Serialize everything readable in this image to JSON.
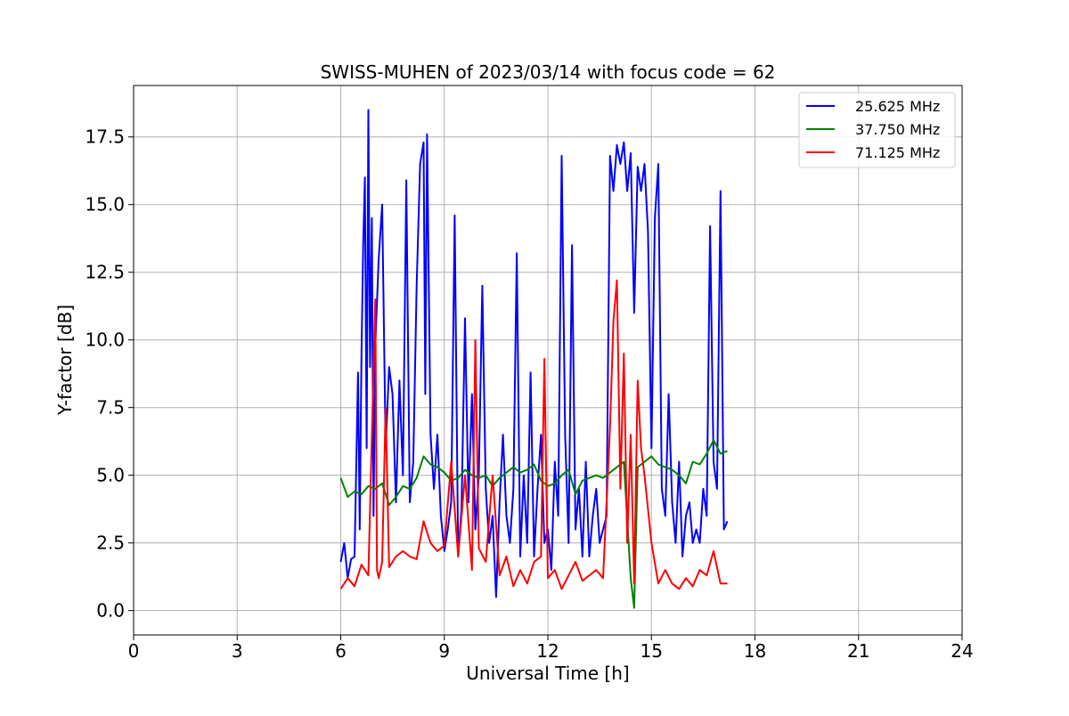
{
  "chart_data": {
    "type": "line",
    "title": "SWISS-MUHEN of 2023/03/14 with focus code = 62",
    "xlabel": "Universal Time [h]",
    "ylabel": "Y-factor [dB]",
    "xlim": [
      0,
      24
    ],
    "ylim": [
      -0.9,
      19.4
    ],
    "xticks": [
      0,
      3,
      6,
      9,
      12,
      15,
      18,
      21,
      24
    ],
    "yticks": [
      0.0,
      2.5,
      5.0,
      7.5,
      10.0,
      12.5,
      15.0,
      17.5
    ],
    "xtick_labels": [
      "0",
      "3",
      "6",
      "9",
      "12",
      "15",
      "18",
      "21",
      "24"
    ],
    "ytick_labels": [
      "0.0",
      "2.5",
      "5.0",
      "7.5",
      "10.0",
      "12.5",
      "15.0",
      "17.5"
    ],
    "grid": true,
    "legend_position": "top-right",
    "series": [
      {
        "name": "25.625 MHz",
        "color": "#0000ff",
        "x": [
          6.0,
          6.1,
          6.2,
          6.3,
          6.4,
          6.5,
          6.55,
          6.6,
          6.65,
          6.7,
          6.75,
          6.8,
          6.85,
          6.9,
          6.95,
          7.0,
          7.1,
          7.2,
          7.3,
          7.4,
          7.5,
          7.6,
          7.7,
          7.8,
          7.9,
          8.0,
          8.1,
          8.2,
          8.3,
          8.4,
          8.45,
          8.5,
          8.6,
          8.7,
          8.8,
          8.9,
          9.0,
          9.1,
          9.2,
          9.3,
          9.4,
          9.5,
          9.6,
          9.7,
          9.8,
          9.9,
          10.0,
          10.1,
          10.2,
          10.3,
          10.4,
          10.5,
          10.6,
          10.7,
          10.8,
          10.9,
          11.0,
          11.1,
          11.2,
          11.3,
          11.4,
          11.5,
          11.6,
          11.7,
          11.8,
          11.9,
          12.0,
          12.1,
          12.2,
          12.3,
          12.4,
          12.5,
          12.6,
          12.7,
          12.8,
          12.9,
          13.0,
          13.1,
          13.2,
          13.3,
          13.4,
          13.5,
          13.6,
          13.7,
          13.8,
          13.9,
          14.0,
          14.1,
          14.2,
          14.3,
          14.4,
          14.5,
          14.6,
          14.7,
          14.8,
          14.9,
          15.0,
          15.1,
          15.2,
          15.3,
          15.4,
          15.5,
          15.6,
          15.7,
          15.8,
          15.9,
          16.0,
          16.1,
          16.2,
          16.3,
          16.4,
          16.5,
          16.6,
          16.7,
          16.8,
          16.9,
          17.0,
          17.1,
          17.2
        ],
        "y": [
          1.8,
          2.5,
          1.2,
          1.9,
          2.0,
          8.8,
          3.0,
          9.5,
          13.5,
          16.0,
          6.0,
          18.5,
          9.0,
          14.5,
          3.5,
          9.8,
          13.0,
          15.0,
          6.0,
          9.0,
          8.0,
          4.0,
          8.5,
          5.0,
          15.9,
          4.0,
          5.5,
          12.0,
          16.5,
          17.3,
          8.0,
          17.6,
          6.5,
          4.5,
          6.5,
          3.5,
          2.2,
          3.0,
          4.0,
          14.6,
          2.0,
          3.8,
          10.8,
          4.0,
          8.0,
          3.0,
          5.0,
          12.0,
          4.5,
          2.5,
          3.5,
          0.5,
          4.0,
          6.5,
          3.5,
          2.5,
          4.5,
          13.2,
          2.0,
          5.0,
          2.5,
          8.8,
          2.0,
          4.5,
          6.5,
          2.5,
          3.0,
          1.5,
          5.5,
          3.5,
          16.8,
          6.5,
          2.5,
          13.5,
          3.0,
          4.5,
          2.0,
          5.5,
          2.0,
          3.5,
          4.5,
          2.5,
          3.0,
          3.5,
          16.8,
          15.5,
          17.2,
          16.5,
          17.3,
          15.5,
          16.9,
          11.0,
          16.4,
          15.5,
          16.5,
          14.0,
          6.0,
          14.5,
          16.5,
          4.5,
          3.5,
          8.0,
          4.0,
          2.5,
          5.5,
          2.0,
          3.5,
          4.0,
          2.5,
          3.0,
          2.5,
          4.5,
          3.5,
          14.2,
          5.5,
          4.5,
          15.5,
          3.0,
          3.3
        ]
      },
      {
        "name": "37.750 MHz",
        "color": "#008000",
        "x": [
          6.0,
          6.2,
          6.4,
          6.6,
          6.8,
          7.0,
          7.2,
          7.4,
          7.6,
          7.8,
          8.0,
          8.2,
          8.4,
          8.6,
          8.8,
          9.0,
          9.2,
          9.4,
          9.6,
          9.8,
          10.0,
          10.2,
          10.4,
          10.6,
          10.8,
          11.0,
          11.2,
          11.4,
          11.6,
          11.8,
          12.0,
          12.2,
          12.4,
          12.6,
          12.8,
          13.0,
          13.2,
          13.4,
          13.6,
          13.8,
          14.0,
          14.2,
          14.4,
          14.5,
          14.6,
          14.8,
          15.0,
          15.2,
          15.4,
          15.6,
          15.8,
          16.0,
          16.2,
          16.4,
          16.6,
          16.8,
          17.0,
          17.2
        ],
        "y": [
          4.9,
          4.2,
          4.4,
          4.3,
          4.6,
          4.5,
          4.7,
          3.9,
          4.2,
          4.6,
          4.5,
          4.9,
          5.7,
          5.4,
          5.3,
          5.1,
          4.8,
          4.9,
          5.2,
          5.0,
          4.9,
          5.0,
          4.6,
          4.9,
          5.1,
          5.3,
          5.1,
          5.2,
          5.4,
          4.8,
          4.6,
          4.7,
          5.0,
          5.2,
          4.3,
          4.8,
          4.9,
          5.0,
          4.9,
          5.1,
          5.3,
          5.5,
          1.2,
          0.1,
          5.3,
          5.5,
          5.7,
          5.4,
          5.3,
          5.2,
          5.0,
          4.7,
          5.5,
          5.4,
          5.8,
          6.3,
          5.8,
          5.9
        ]
      },
      {
        "name": "71.125 MHz",
        "color": "#ff0000",
        "x": [
          6.0,
          6.2,
          6.4,
          6.6,
          6.8,
          7.0,
          7.05,
          7.1,
          7.2,
          7.3,
          7.4,
          7.6,
          7.8,
          8.0,
          8.2,
          8.4,
          8.6,
          8.8,
          9.0,
          9.2,
          9.4,
          9.6,
          9.8,
          9.9,
          10.0,
          10.2,
          10.4,
          10.6,
          10.8,
          11.0,
          11.2,
          11.4,
          11.6,
          11.8,
          11.9,
          12.0,
          12.2,
          12.4,
          12.6,
          12.8,
          13.0,
          13.2,
          13.4,
          13.6,
          13.8,
          13.9,
          14.0,
          14.1,
          14.2,
          14.3,
          14.4,
          14.5,
          14.6,
          14.7,
          14.8,
          15.0,
          15.2,
          15.4,
          15.6,
          15.8,
          16.0,
          16.2,
          16.4,
          16.6,
          16.8,
          17.0,
          17.2
        ],
        "y": [
          0.8,
          1.2,
          0.9,
          1.7,
          1.3,
          11.5,
          1.5,
          1.2,
          1.8,
          7.5,
          1.6,
          2.0,
          2.2,
          2.0,
          1.9,
          3.3,
          2.5,
          2.2,
          2.4,
          5.5,
          2.0,
          5.0,
          1.5,
          10.0,
          2.3,
          1.8,
          5.0,
          1.3,
          2.0,
          0.9,
          1.5,
          1.0,
          1.8,
          2.0,
          9.3,
          1.2,
          1.5,
          0.8,
          1.3,
          1.8,
          1.1,
          1.3,
          1.5,
          1.2,
          6.8,
          10.7,
          12.2,
          4.5,
          9.5,
          2.5,
          6.5,
          1.0,
          8.5,
          6.0,
          5.0,
          2.5,
          1.0,
          1.5,
          1.0,
          0.8,
          1.2,
          0.9,
          1.5,
          1.3,
          2.2,
          1.0,
          1.0
        ]
      }
    ]
  }
}
